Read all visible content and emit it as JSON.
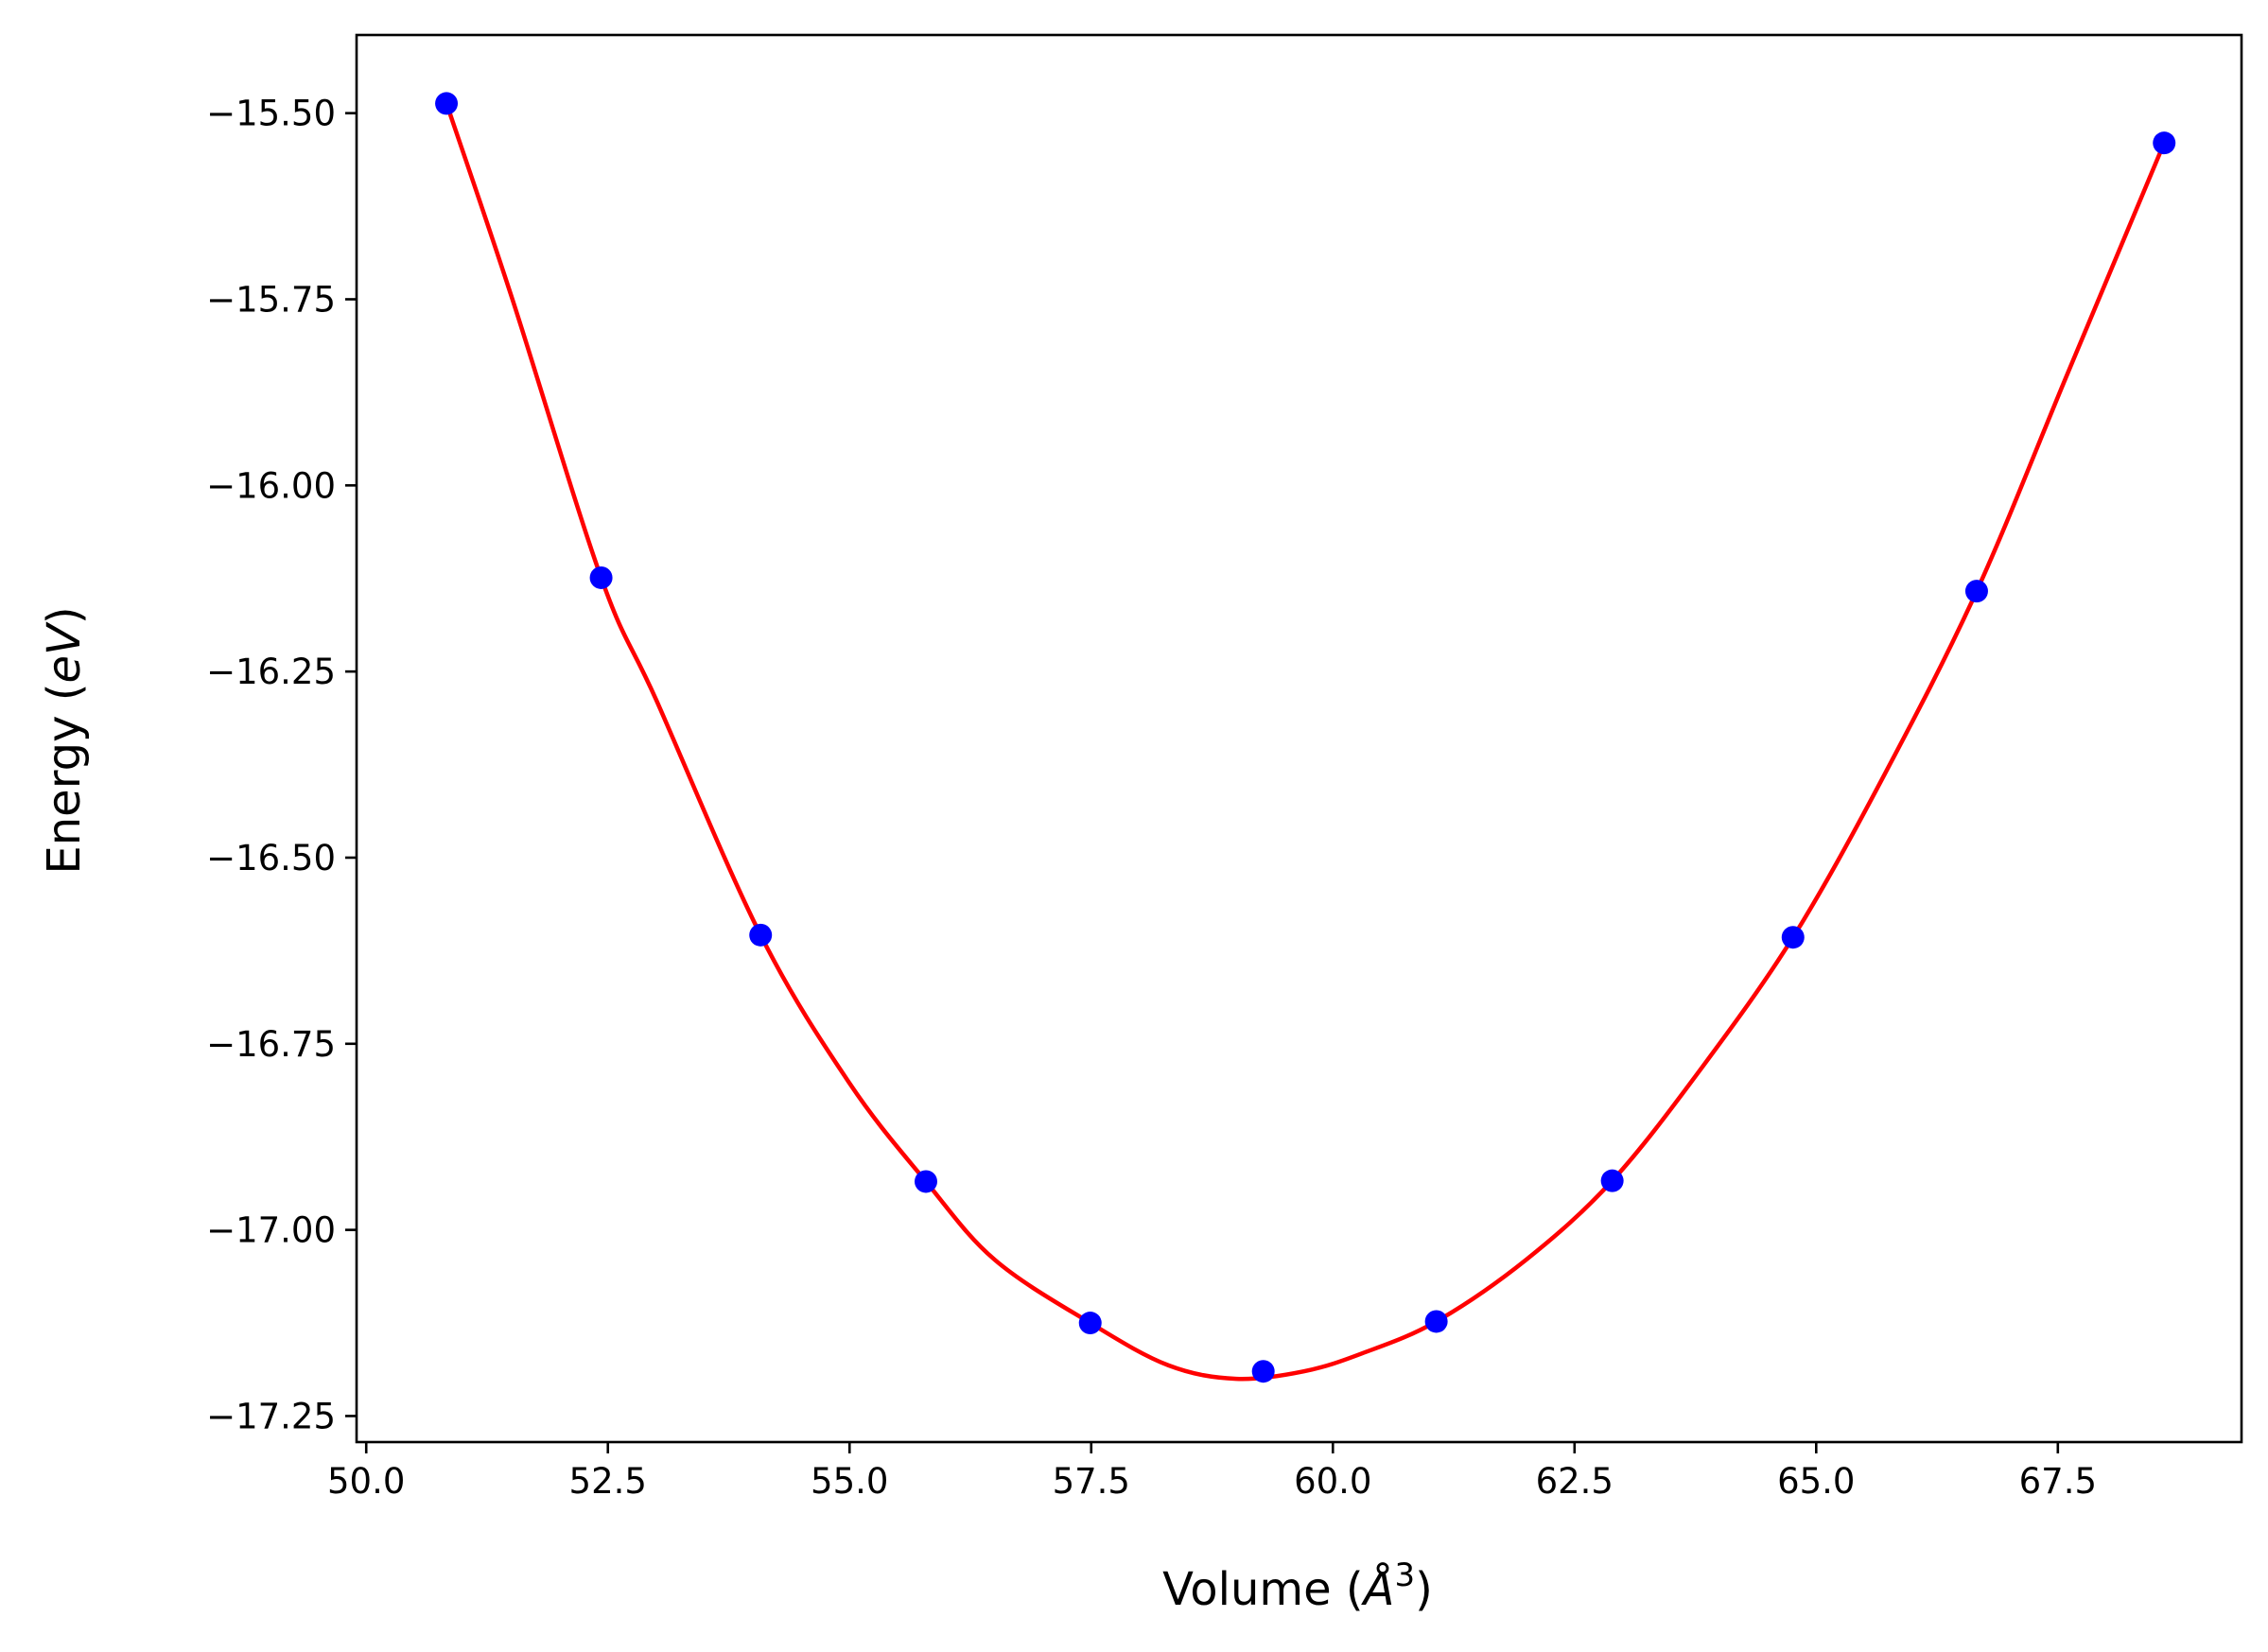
{
  "chart_data": {
    "type": "scatter",
    "title": "",
    "xlabel": "Volume (Å³)",
    "xlabel_parts": {
      "open": "Volume (",
      "unit": "Å",
      "exp": "3",
      "close": ")"
    },
    "ylabel": "Energy (eV)",
    "ylabel_parts": {
      "open": "Energy (",
      "unit": "eV",
      "close": ")"
    },
    "xlim": [
      49.9,
      69.4
    ],
    "ylim": [
      -17.285,
      -15.395
    ],
    "xticks": [
      50.0,
      52.5,
      55.0,
      57.5,
      60.0,
      62.5,
      65.0,
      67.5
    ],
    "xtick_labels": [
      "50.0",
      "52.5",
      "55.0",
      "57.5",
      "60.0",
      "62.5",
      "65.0",
      "67.5"
    ],
    "yticks": [
      -15.5,
      -15.75,
      -16.0,
      -16.25,
      -16.5,
      -16.75,
      -17.0,
      -17.25
    ],
    "ytick_labels": [
      "−15.50",
      "−15.75",
      "−16.00",
      "−16.25",
      "−16.50",
      "−16.75",
      "−17.00",
      "−17.25"
    ],
    "grid": false,
    "series": [
      {
        "kind": "points",
        "color": "#0000ff",
        "x": [
          50.83,
          52.43,
          54.08,
          55.79,
          57.49,
          59.28,
          61.07,
          62.89,
          64.76,
          66.66,
          68.6
        ],
        "y": [
          -15.487,
          -16.124,
          -16.604,
          -16.935,
          -17.125,
          -17.19,
          -17.123,
          -16.934,
          -16.607,
          -16.142,
          -15.54
        ]
      },
      {
        "kind": "fit-line",
        "color": "#ff0000",
        "x": [
          50.83,
          51.5,
          52.43,
          53.0,
          54.08,
          55.0,
          55.79,
          56.5,
          57.49,
          58.3,
          59.0,
          59.7,
          60.3,
          61.07,
          62.0,
          62.89,
          63.8,
          64.76,
          65.7,
          66.66,
          67.6,
          68.6
        ],
        "y": [
          -15.487,
          -15.745,
          -16.124,
          -16.288,
          -16.604,
          -16.803,
          -16.935,
          -17.04,
          -17.125,
          -17.182,
          -17.2,
          -17.19,
          -17.166,
          -17.123,
          -17.04,
          -16.934,
          -16.785,
          -16.607,
          -16.39,
          -16.142,
          -15.85,
          -15.54
        ]
      }
    ],
    "colors": {
      "axis": "#000000",
      "points": "#0000ff",
      "curve": "#ff0000"
    }
  }
}
